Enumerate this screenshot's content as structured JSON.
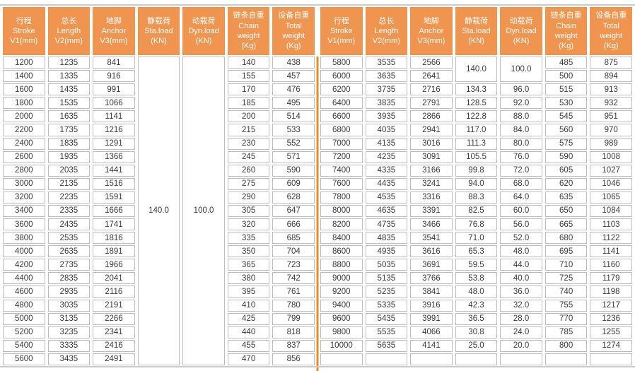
{
  "colors": {
    "header_bg": "#F0954F",
    "header_text": "#FFFFFF",
    "cell_border": "#BDBDBD",
    "divider": "#EE8A1E",
    "hairline": "#CBCBCB",
    "cell_text": "#3A3A3A"
  },
  "table": {
    "headers": [
      [
        "行程",
        "Stroke",
        "V1(mm)"
      ],
      [
        "总长",
        "Length",
        "V2(mm)"
      ],
      [
        "地脚",
        "Anchor",
        "V3(mm)"
      ],
      [
        "静载荷",
        "Sta.load",
        "(KN)"
      ],
      [
        "动载荷",
        "Dyn.load",
        "(KN)"
      ],
      [
        "链条自重",
        "Chain",
        "weight",
        "(Kg)"
      ],
      [
        "设备自重",
        "Total",
        "weight",
        "(Kg)"
      ]
    ],
    "halves": [
      {
        "name": "left",
        "merged": [
          {
            "col": 4,
            "row": 1,
            "span": 23,
            "value": "140.0"
          },
          {
            "col": 5,
            "row": 1,
            "span": 23,
            "value": "100.0"
          }
        ],
        "rows": [
          [
            "1200",
            "1235",
            "841",
            null,
            null,
            "140",
            "438"
          ],
          [
            "1400",
            "1335",
            "916",
            null,
            null,
            "155",
            "457"
          ],
          [
            "1600",
            "1435",
            "991",
            null,
            null,
            "170",
            "476"
          ],
          [
            "1800",
            "1535",
            "1066",
            null,
            null,
            "185",
            "495"
          ],
          [
            "2000",
            "1635",
            "1141",
            null,
            null,
            "200",
            "514"
          ],
          [
            "2200",
            "1735",
            "1216",
            null,
            null,
            "215",
            "533"
          ],
          [
            "2400",
            "1835",
            "1291",
            null,
            null,
            "230",
            "552"
          ],
          [
            "2600",
            "1935",
            "1366",
            null,
            null,
            "245",
            "571"
          ],
          [
            "2800",
            "2035",
            "1441",
            null,
            null,
            "260",
            "590"
          ],
          [
            "3000",
            "2135",
            "1516",
            null,
            null,
            "275",
            "609"
          ],
          [
            "3200",
            "2235",
            "1591",
            null,
            null,
            "290",
            "628"
          ],
          [
            "3400",
            "2335",
            "1666",
            null,
            null,
            "305",
            "647"
          ],
          [
            "3600",
            "2435",
            "1741",
            null,
            null,
            "320",
            "666"
          ],
          [
            "3800",
            "2535",
            "1816",
            null,
            null,
            "335",
            "685"
          ],
          [
            "4000",
            "2635",
            "1891",
            null,
            null,
            "350",
            "704"
          ],
          [
            "4200",
            "2735",
            "1966",
            null,
            null,
            "365",
            "723"
          ],
          [
            "4400",
            "2835",
            "2041",
            null,
            null,
            "380",
            "742"
          ],
          [
            "4600",
            "2935",
            "2116",
            null,
            null,
            "395",
            "761"
          ],
          [
            "4800",
            "3035",
            "2191",
            null,
            null,
            "410",
            "780"
          ],
          [
            "5000",
            "3135",
            "2266",
            null,
            null,
            "425",
            "799"
          ],
          [
            "5200",
            "3235",
            "2341",
            null,
            null,
            "440",
            "818"
          ],
          [
            "5400",
            "3335",
            "2416",
            null,
            null,
            "455",
            "837"
          ],
          [
            "5600",
            "3435",
            "2491",
            null,
            null,
            "470",
            "856"
          ]
        ]
      },
      {
        "name": "right",
        "merged": [
          {
            "col": 4,
            "row": 1,
            "span": 2,
            "value": "140.0"
          },
          {
            "col": 5,
            "row": 1,
            "span": 2,
            "value": "100.0"
          }
        ],
        "rows": [
          [
            "5800",
            "3535",
            "2566",
            null,
            null,
            "485",
            "875"
          ],
          [
            "6000",
            "3635",
            "2641",
            null,
            null,
            "500",
            "894"
          ],
          [
            "6200",
            "3735",
            "2716",
            "134.3",
            "96.0",
            "515",
            "913"
          ],
          [
            "6400",
            "3835",
            "2791",
            "128.5",
            "92.0",
            "530",
            "932"
          ],
          [
            "6600",
            "3935",
            "2866",
            "122.8",
            "88.0",
            "545",
            "951"
          ],
          [
            "6800",
            "4035",
            "2941",
            "117.0",
            "84.0",
            "560",
            "970"
          ],
          [
            "7000",
            "4135",
            "3016",
            "111.3",
            "80.0",
            "575",
            "989"
          ],
          [
            "7200",
            "4235",
            "3091",
            "105.5",
            "76.0",
            "590",
            "1008"
          ],
          [
            "7400",
            "4335",
            "3166",
            "99.8",
            "72.0",
            "605",
            "1027"
          ],
          [
            "7600",
            "4435",
            "3241",
            "94.0",
            "68.0",
            "620",
            "1046"
          ],
          [
            "7800",
            "4535",
            "3316",
            "88.3",
            "64.0",
            "635",
            "1065"
          ],
          [
            "8000",
            "4635",
            "3391",
            "82.5",
            "60.0",
            "650",
            "1084"
          ],
          [
            "8200",
            "4735",
            "3466",
            "76.8",
            "56.0",
            "665",
            "1103"
          ],
          [
            "8400",
            "4835",
            "3541",
            "71.0",
            "52.0",
            "680",
            "1122"
          ],
          [
            "8600",
            "4935",
            "3616",
            "65.3",
            "48.0",
            "695",
            "1141"
          ],
          [
            "8800",
            "5035",
            "3691",
            "59.5",
            "44.0",
            "710",
            "1160"
          ],
          [
            "9000",
            "5135",
            "3766",
            "53.8",
            "40.0",
            "725",
            "1179"
          ],
          [
            "9200",
            "5235",
            "3841",
            "48.0",
            "36.0",
            "740",
            "1198"
          ],
          [
            "9400",
            "5335",
            "3916",
            "42.3",
            "32.0",
            "755",
            "1217"
          ],
          [
            "9600",
            "5435",
            "3991",
            "36.5",
            "28.0",
            "770",
            "1236"
          ],
          [
            "9800",
            "5535",
            "4066",
            "30.8",
            "24.0",
            "785",
            "1255"
          ],
          [
            "10000",
            "5635",
            "4141",
            "25.0",
            "20.0",
            "800",
            "1274"
          ],
          [
            "",
            "",
            "",
            "",
            "",
            "",
            ""
          ]
        ]
      }
    ]
  }
}
